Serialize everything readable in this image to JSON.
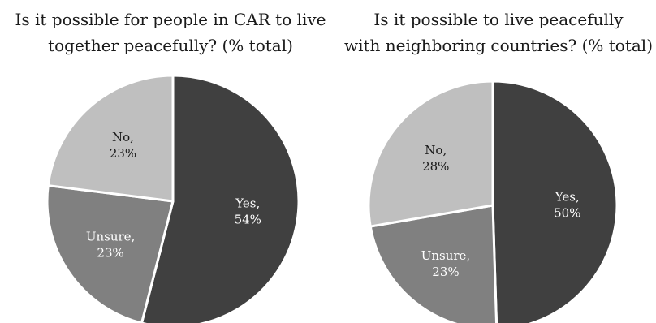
{
  "chart_data": [
    {
      "type": "pie",
      "title_lines": [
        "Is it possible for people in CAR to live",
        "together peacefully? (% total)"
      ],
      "start_angle_deg": 0,
      "direction": "clockwise",
      "slices": [
        {
          "label": "Yes,",
          "value_label": "54%",
          "value": 54,
          "color": "#404040",
          "label_color": "#ffffff"
        },
        {
          "label": "Unsure,",
          "value_label": "23%",
          "value": 23,
          "color": "#808080",
          "label_color": "#ffffff"
        },
        {
          "label": "No,",
          "value_label": "23%",
          "value": 23,
          "color": "#bfbfbf",
          "label_color": "#1a1a1a"
        }
      ]
    },
    {
      "type": "pie",
      "title_lines": [
        "Is it possible to live peacefully",
        "with neighboring countries? (% total)"
      ],
      "start_angle_deg": 0,
      "direction": "clockwise",
      "slices": [
        {
          "label": "Yes,",
          "value_label": "50%",
          "value": 50,
          "color": "#404040",
          "label_color": "#ffffff"
        },
        {
          "label": "Unsure,",
          "value_label": "23%",
          "value": 23,
          "color": "#808080",
          "label_color": "#ffffff"
        },
        {
          "label": "No,",
          "value_label": "28%",
          "value": 28,
          "color": "#bfbfbf",
          "label_color": "#1a1a1a"
        }
      ]
    }
  ]
}
